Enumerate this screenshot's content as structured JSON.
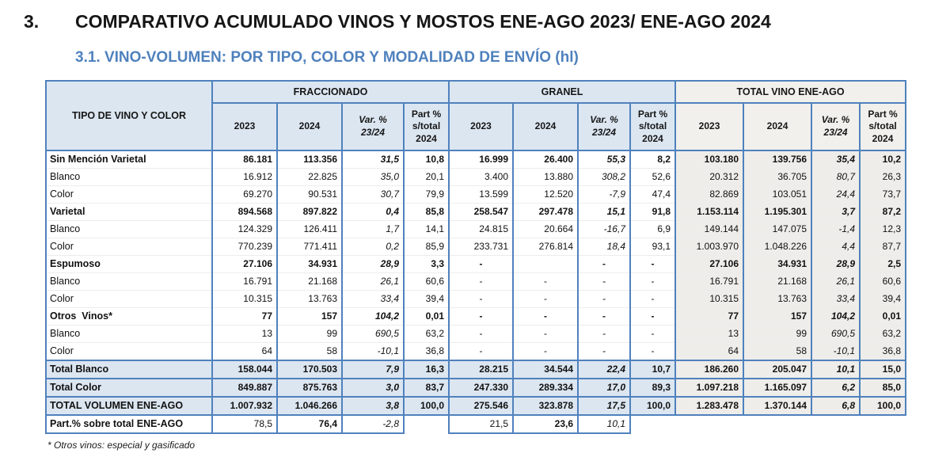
{
  "page": {
    "section_number": "3.",
    "title": "COMPARATIVO ACUMULADO VINOS Y MOSTOS ENE-AGO 2023/ ENE-AGO 2024",
    "subtitle": "3.1. VINO-VOLUMEN: POR TIPO, COLOR Y MODALIDAD DE ENVÍO (hl)",
    "footnote": "* Otros vinos: especial y gasificado"
  },
  "colors": {
    "accent_blue": "#4f81bd",
    "border_blue": "#4f81bd",
    "header_fill_blue": "#dce6f1",
    "total_section_fill_gray": "#eeedea",
    "subtitle_color": "#4f81bd"
  },
  "table": {
    "corner": "TIPO DE VINO Y COLOR",
    "groups": [
      {
        "label": "FRACCIONADO",
        "subs": [
          "2023",
          "2024",
          "Var. %\n23/24",
          "Part %\ns/total\n2024"
        ]
      },
      {
        "label": "GRANEL",
        "subs": [
          "2023",
          "2024",
          "Var. %\n23/24",
          "Part %\ns/total\n2024"
        ]
      },
      {
        "label": "TOTAL VINO ENE-AGO",
        "subs": [
          "2023",
          "2024",
          "Var. %\n23/24",
          "Part %\ns/total\n2024"
        ]
      }
    ],
    "rows": [
      {
        "label": "Sin Mención Varietal",
        "style": "cat",
        "cells": [
          "86.181",
          "113.356",
          "31,5",
          "10,8",
          "16.999",
          "26.400",
          "55,3",
          "8,2",
          "103.180",
          "139.756",
          "35,4",
          "10,2"
        ]
      },
      {
        "label": "Blanco",
        "style": "sub",
        "cells": [
          "16.912",
          "22.825",
          "35,0",
          "20,1",
          "3.400",
          "13.880",
          "308,2",
          "52,6",
          "20.312",
          "36.705",
          "80,7",
          "26,3"
        ]
      },
      {
        "label": "Color",
        "style": "sub",
        "cells": [
          "69.270",
          "90.531",
          "30,7",
          "79,9",
          "13.599",
          "12.520",
          "-7,9",
          "47,4",
          "82.869",
          "103.051",
          "24,4",
          "73,7"
        ]
      },
      {
        "label": "Varietal",
        "style": "cat",
        "cells": [
          "894.568",
          "897.822",
          "0,4",
          "85,8",
          "258.547",
          "297.478",
          "15,1",
          "91,8",
          "1.153.114",
          "1.195.301",
          "3,7",
          "87,2"
        ]
      },
      {
        "label": "Blanco",
        "style": "sub",
        "cells": [
          "124.329",
          "126.411",
          "1,7",
          "14,1",
          "24.815",
          "20.664",
          "-16,7",
          "6,9",
          "149.144",
          "147.075",
          "-1,4",
          "12,3"
        ]
      },
      {
        "label": "Color",
        "style": "sub",
        "cells": [
          "770.239",
          "771.411",
          "0,2",
          "85,9",
          "233.731",
          "276.814",
          "18,4",
          "93,1",
          "1.003.970",
          "1.048.226",
          "4,4",
          "87,7"
        ]
      },
      {
        "label": "Espumoso",
        "style": "cat",
        "cells": [
          "27.106",
          "34.931",
          "28,9",
          "3,3",
          "-",
          "",
          "-",
          "-",
          "27.106",
          "34.931",
          "28,9",
          "2,5"
        ]
      },
      {
        "label": "Blanco",
        "style": "sub",
        "cells": [
          "16.791",
          "21.168",
          "26,1",
          "60,6",
          "-",
          "-",
          "-",
          "-",
          "16.791",
          "21.168",
          "26,1",
          "60,6"
        ]
      },
      {
        "label": "Color",
        "style": "sub",
        "cells": [
          "10.315",
          "13.763",
          "33,4",
          "39,4",
          "-",
          "-",
          "-",
          "-",
          "10.315",
          "13.763",
          "33,4",
          "39,4"
        ]
      },
      {
        "label": "Otros  Vinos*",
        "style": "cat",
        "cells": [
          "77",
          "157",
          "104,2",
          "0,01",
          "-",
          "-",
          "-",
          "-",
          "77",
          "157",
          "104,2",
          "0,01"
        ]
      },
      {
        "label": "Blanco",
        "style": "sub",
        "cells": [
          "13",
          "99",
          "690,5",
          "63,2",
          "-",
          "-",
          "-",
          "-",
          "13",
          "99",
          "690,5",
          "63,2"
        ]
      },
      {
        "label": "Color",
        "style": "sub",
        "cells": [
          "64",
          "58",
          "-10,1",
          "36,8",
          "-",
          "-",
          "-",
          "-",
          "64",
          "58",
          "-10,1",
          "36,8"
        ]
      },
      {
        "label": "Total Blanco",
        "style": "total",
        "cells": [
          "158.044",
          "170.503",
          "7,9",
          "16,3",
          "28.215",
          "34.544",
          "22,4",
          "10,7",
          "186.260",
          "205.047",
          "10,1",
          "15,0"
        ]
      },
      {
        "label": "Total Color",
        "style": "total",
        "cells": [
          "849.887",
          "875.763",
          "3,0",
          "83,7",
          "247.330",
          "289.334",
          "17,0",
          "89,3",
          "1.097.218",
          "1.165.097",
          "6,2",
          "85,0"
        ]
      },
      {
        "label": "TOTAL VOLUMEN ENE-AGO",
        "style": "grand",
        "cells": [
          "1.007.932",
          "1.046.266",
          "3,8",
          "100,0",
          "275.546",
          "323.878",
          "17,5",
          "100,0",
          "1.283.478",
          "1.370.144",
          "6,8",
          "100,0"
        ]
      },
      {
        "label": "Part.% sobre total ENE-AGO",
        "style": "part",
        "cells": [
          "78,5",
          "76,4",
          "-2,8",
          null,
          "21,5",
          "23,6",
          "10,1",
          null,
          null,
          null,
          null,
          null
        ],
        "cell_classes": [
          "",
          "b",
          "",
          "",
          "",
          "b",
          "",
          "",
          "",
          "",
          "",
          ""
        ]
      }
    ]
  }
}
